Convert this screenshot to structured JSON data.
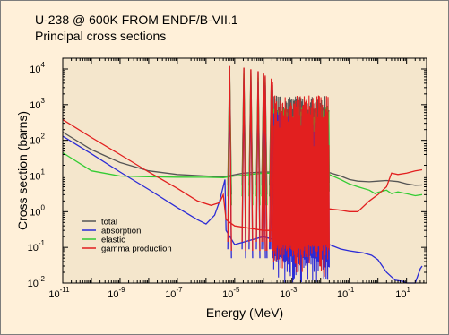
{
  "figure": {
    "title_line1": "U-238 @ 600K FROM ENDF/B-VII.1",
    "title_line2": "Principal cross sections"
  },
  "colors": {
    "background": "#fff0d9",
    "plot_area": "#f4e6cc",
    "total": "#555555",
    "absorption": "#2b2bd6",
    "elastic": "#33cc33",
    "gamma_production": "#e21f1f"
  },
  "chart_data": {
    "type": "line",
    "title": "U-238 @ 600K FROM ENDF/B-VII.1",
    "subtitle": "Principal cross sections",
    "xlabel": "Energy (MeV)",
    "ylabel": "Cross section (barns)",
    "x_scale": "log",
    "y_scale": "log",
    "xlim": [
      1e-11,
      50
    ],
    "ylim": [
      0.01,
      20000
    ],
    "grid": false,
    "legend_position": "lower-left",
    "x_ticks": [
      {
        "value": 1e-11,
        "base": "10",
        "exp": "-11"
      },
      {
        "value": 1e-09,
        "base": "10",
        "exp": "-9"
      },
      {
        "value": 1e-07,
        "base": "10",
        "exp": "-7"
      },
      {
        "value": 1e-05,
        "base": "10",
        "exp": "-5"
      },
      {
        "value": 0.001,
        "base": "10",
        "exp": "-3"
      },
      {
        "value": 0.1,
        "base": "10",
        "exp": "-1"
      },
      {
        "value": 10,
        "base": "10",
        "exp": "1"
      }
    ],
    "y_ticks": [
      {
        "value": 0.01,
        "base": "10",
        "exp": "-2"
      },
      {
        "value": 0.1,
        "base": "10",
        "exp": "-1"
      },
      {
        "value": 1,
        "base": "10",
        "exp": "0"
      },
      {
        "value": 10,
        "base": "10",
        "exp": "1"
      },
      {
        "value": 100,
        "base": "10",
        "exp": "2"
      },
      {
        "value": 1000,
        "base": "10",
        "exp": "3"
      },
      {
        "value": 10000,
        "base": "10",
        "exp": "4"
      }
    ],
    "resonances": [
      6.67e-06,
      2.09e-05,
      3.67e-05,
      6.6e-05,
      0.000102,
      0.000116,
      0.00019,
      0.000208
    ],
    "series": [
      {
        "name": "total",
        "points": [
          [
            1e-11,
            170
          ],
          [
            1e-10,
            55
          ],
          [
            1e-09,
            24
          ],
          [
            1e-08,
            14
          ],
          [
            1e-07,
            11
          ],
          [
            1e-06,
            10
          ],
          [
            4e-06,
            9.5
          ],
          [
            2e-05,
            12
          ],
          [
            0.0001,
            13
          ],
          [
            0.001,
            13
          ],
          [
            0.01,
            13
          ],
          [
            0.02,
            12.5
          ],
          [
            0.05,
            10
          ],
          [
            0.1,
            8
          ],
          [
            0.2,
            7.2
          ],
          [
            0.5,
            6.9
          ],
          [
            1,
            7.2
          ],
          [
            2,
            7.5
          ],
          [
            5,
            7
          ],
          [
            10,
            6
          ],
          [
            20,
            5.5
          ],
          [
            35,
            5.6
          ]
        ]
      },
      {
        "name": "absorption",
        "points": [
          [
            1e-11,
            130
          ],
          [
            1e-10,
            42
          ],
          [
            1e-09,
            13
          ],
          [
            1e-08,
            4.2
          ],
          [
            1e-07,
            1.3
          ],
          [
            5e-07,
            0.6
          ],
          [
            1e-06,
            0.45
          ],
          [
            2e-06,
            0.8
          ],
          [
            3e-06,
            2
          ],
          [
            4.6e-06,
            8
          ],
          [
            5e-06,
            0.3
          ],
          [
            1e-05,
            0.12
          ],
          [
            0.0001,
            0.2
          ],
          [
            0.001,
            0.12
          ],
          [
            0.01,
            0.15
          ],
          [
            0.02,
            0.12
          ],
          [
            0.05,
            0.09
          ],
          [
            0.1,
            0.08
          ],
          [
            0.3,
            0.07
          ],
          [
            0.6,
            0.06
          ],
          [
            1,
            0.045
          ],
          [
            2,
            0.02
          ],
          [
            4,
            0.012
          ],
          [
            8,
            0.011
          ],
          [
            10,
            0.01
          ],
          [
            20,
            0.01
          ],
          [
            30,
            0.025
          ],
          [
            35,
            0.03
          ]
        ]
      },
      {
        "name": "elastic",
        "points": [
          [
            1e-11,
            45
          ],
          [
            1e-10,
            14
          ],
          [
            1e-09,
            10
          ],
          [
            1e-08,
            9.5
          ],
          [
            1e-07,
            9.3
          ],
          [
            1e-06,
            9.2
          ],
          [
            4e-06,
            9
          ],
          [
            1e-05,
            10
          ],
          [
            0.0001,
            12
          ],
          [
            0.001,
            12
          ],
          [
            0.01,
            12
          ],
          [
            0.02,
            11
          ],
          [
            0.05,
            8
          ],
          [
            0.1,
            6
          ],
          [
            0.2,
            5
          ],
          [
            0.5,
            4
          ],
          [
            0.8,
            3.2
          ],
          [
            1,
            3.5
          ],
          [
            2,
            4
          ],
          [
            3,
            3.2
          ],
          [
            5,
            3.6
          ],
          [
            10,
            3.2
          ],
          [
            20,
            2.8
          ],
          [
            35,
            3
          ]
        ]
      },
      {
        "name": "gamma production",
        "points": [
          [
            1e-11,
            380
          ],
          [
            1e-10,
            120
          ],
          [
            1e-09,
            40
          ],
          [
            1e-08,
            13
          ],
          [
            1e-07,
            4.5
          ],
          [
            5e-07,
            2
          ],
          [
            1.5e-06,
            1.5
          ],
          [
            3e-06,
            1.8
          ],
          [
            4e-06,
            3
          ],
          [
            5e-06,
            0.6
          ],
          [
            1e-05,
            0.4
          ],
          [
            0.0001,
            0.3
          ],
          [
            0.001,
            0.3
          ],
          [
            0.01,
            0.3
          ],
          [
            0.02,
            1.2
          ],
          [
            0.05,
            1.1
          ],
          [
            0.1,
            1
          ],
          [
            0.2,
            1
          ],
          [
            0.5,
            2
          ],
          [
            1,
            3
          ],
          [
            2,
            5
          ],
          [
            3,
            12
          ],
          [
            5,
            11
          ],
          [
            10,
            12
          ],
          [
            20,
            14
          ],
          [
            35,
            15
          ]
        ]
      }
    ]
  }
}
